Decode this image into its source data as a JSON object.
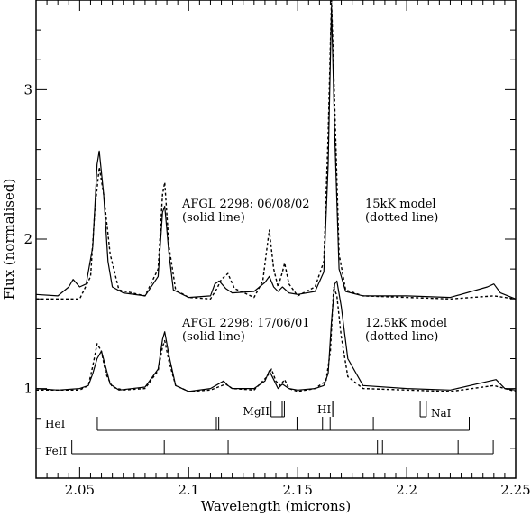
{
  "chart_data": {
    "type": "line",
    "xlabel": "Wavelength (microns)",
    "ylabel": "Flux (normalised)",
    "xlim": [
      2.03,
      2.25
    ],
    "ylim": [
      0.4,
      3.6
    ],
    "x_ticks": [
      2.05,
      2.1,
      2.15,
      2.2,
      2.25
    ],
    "x_tick_labels": [
      "2.05",
      "2.1",
      "2.15",
      "2.2",
      "2.25"
    ],
    "y_ticks": [
      1,
      2,
      3
    ],
    "y_tick_labels": [
      "1",
      "2",
      "3"
    ],
    "annotations": {
      "top_observed": [
        "AFGL 2298: 06/08/02",
        "(solid line)"
      ],
      "top_model": [
        "15kK model",
        "(dotted line)"
      ],
      "bottom_observed": [
        "AFGL 2298: 17/06/01",
        "(solid line)"
      ],
      "bottom_model": [
        "12.5kK model",
        "(dotted line)"
      ]
    },
    "series": [
      {
        "style": "solid",
        "x": [
          2.03,
          2.04,
          2.045,
          2.047,
          2.05,
          2.053,
          2.056,
          2.058,
          2.059,
          2.061,
          2.063,
          2.065,
          2.07,
          2.08,
          2.086,
          2.088,
          2.089,
          2.091,
          2.093,
          2.1,
          2.11,
          2.112,
          2.114,
          2.117,
          2.12,
          2.13,
          2.135,
          2.137,
          2.139,
          2.141,
          2.143,
          2.146,
          2.15,
          2.158,
          2.162,
          2.164,
          2.1655,
          2.167,
          2.169,
          2.172,
          2.18,
          2.2,
          2.22,
          2.237,
          2.24,
          2.243,
          2.25
        ],
        "y": [
          1.63,
          1.62,
          1.68,
          1.73,
          1.68,
          1.7,
          1.95,
          2.5,
          2.59,
          2.3,
          1.85,
          1.68,
          1.64,
          1.62,
          1.75,
          2.18,
          2.22,
          1.9,
          1.66,
          1.61,
          1.62,
          1.7,
          1.72,
          1.67,
          1.64,
          1.65,
          1.71,
          1.75,
          1.68,
          1.65,
          1.68,
          1.64,
          1.63,
          1.65,
          1.78,
          2.5,
          3.55,
          2.7,
          1.8,
          1.65,
          1.62,
          1.62,
          1.61,
          1.68,
          1.7,
          1.64,
          1.6
        ]
      },
      {
        "style": "dotted",
        "x": [
          2.03,
          2.05,
          2.055,
          2.057,
          2.059,
          2.061,
          2.064,
          2.068,
          2.08,
          2.086,
          2.088,
          2.089,
          2.091,
          2.094,
          2.1,
          2.11,
          2.113,
          2.115,
          2.118,
          2.121,
          2.13,
          2.134,
          2.136,
          2.137,
          2.139,
          2.141,
          2.143,
          2.144,
          2.146,
          2.15,
          2.158,
          2.162,
          2.164,
          2.1655,
          2.167,
          2.169,
          2.172,
          2.18,
          2.2,
          2.22,
          2.24,
          2.25
        ],
        "y": [
          1.6,
          1.6,
          1.75,
          2.2,
          2.48,
          2.3,
          1.9,
          1.66,
          1.62,
          1.8,
          2.3,
          2.38,
          1.95,
          1.66,
          1.61,
          1.6,
          1.67,
          1.73,
          1.77,
          1.67,
          1.61,
          1.72,
          1.95,
          2.06,
          1.8,
          1.68,
          1.78,
          1.84,
          1.7,
          1.62,
          1.68,
          1.85,
          2.7,
          3.6,
          2.9,
          1.9,
          1.66,
          1.62,
          1.61,
          1.6,
          1.62,
          1.6
        ]
      },
      {
        "style": "solid",
        "x": [
          2.03,
          2.04,
          2.05,
          2.054,
          2.056,
          2.058,
          2.06,
          2.062,
          2.064,
          2.068,
          2.08,
          2.086,
          2.088,
          2.089,
          2.091,
          2.094,
          2.1,
          2.11,
          2.116,
          2.118,
          2.12,
          2.13,
          2.135,
          2.137,
          2.139,
          2.141,
          2.143,
          2.146,
          2.15,
          2.158,
          2.162,
          2.164,
          2.1655,
          2.167,
          2.168,
          2.17,
          2.173,
          2.18,
          2.2,
          2.22,
          2.238,
          2.241,
          2.245,
          2.25
        ],
        "y": [
          1.0,
          0.99,
          1.0,
          1.02,
          1.1,
          1.2,
          1.25,
          1.14,
          1.03,
          0.99,
          1.01,
          1.13,
          1.33,
          1.38,
          1.22,
          1.02,
          0.98,
          1.0,
          1.05,
          1.02,
          1.0,
          1.0,
          1.05,
          1.12,
          1.06,
          1.0,
          1.03,
          1.0,
          0.99,
          1.0,
          1.02,
          1.1,
          1.45,
          1.7,
          1.72,
          1.55,
          1.2,
          1.02,
          1.0,
          0.99,
          1.05,
          1.06,
          1.0,
          0.99
        ]
      },
      {
        "style": "dotted",
        "x": [
          2.03,
          2.05,
          2.054,
          2.056,
          2.058,
          2.06,
          2.062,
          2.065,
          2.07,
          2.08,
          2.086,
          2.088,
          2.089,
          2.091,
          2.094,
          2.1,
          2.11,
          2.117,
          2.12,
          2.13,
          2.136,
          2.138,
          2.14,
          2.142,
          2.144,
          2.146,
          2.15,
          2.158,
          2.163,
          2.165,
          2.1665,
          2.168,
          2.17,
          2.173,
          2.18,
          2.2,
          2.22,
          2.24,
          2.25
        ],
        "y": [
          0.99,
          0.99,
          1.02,
          1.15,
          1.3,
          1.25,
          1.1,
          1.01,
          0.99,
          1.0,
          1.12,
          1.28,
          1.32,
          1.18,
          1.02,
          0.98,
          0.99,
          1.03,
          1.0,
          0.99,
          1.08,
          1.13,
          1.05,
          1.02,
          1.06,
          1.0,
          0.98,
          1.0,
          1.05,
          1.25,
          1.68,
          1.62,
          1.35,
          1.08,
          1.0,
          0.99,
          0.98,
          1.02,
          0.98
        ]
      }
    ],
    "line_lists": [
      {
        "label": "HeI",
        "ticks": [
          2.0581,
          2.1127,
          2.1138,
          2.1497,
          2.1614,
          2.1649,
          2.1847,
          2.2287
        ],
        "span": [
          2.0581,
          2.2287
        ]
      },
      {
        "label": "FeII",
        "ticks": [
          2.0464,
          2.0888,
          2.1181,
          2.1866,
          2.1889,
          2.2236,
          2.2397
        ],
        "span": [
          2.0464,
          2.2397
        ]
      }
    ],
    "line_markers": [
      {
        "label": "MgII",
        "ticks": [
          2.1378,
          2.1429,
          2.1439
        ],
        "top_span": [
          2.1378,
          2.1439
        ]
      },
      {
        "label": "HI",
        "ticks": [
          2.1661,
          2.1661
        ],
        "top_span": [
          2.1661,
          2.1661
        ]
      },
      {
        "label": "NaI",
        "ticks": [
          2.2062,
          2.209
        ],
        "top_span": [
          2.2062,
          2.209
        ]
      }
    ]
  }
}
